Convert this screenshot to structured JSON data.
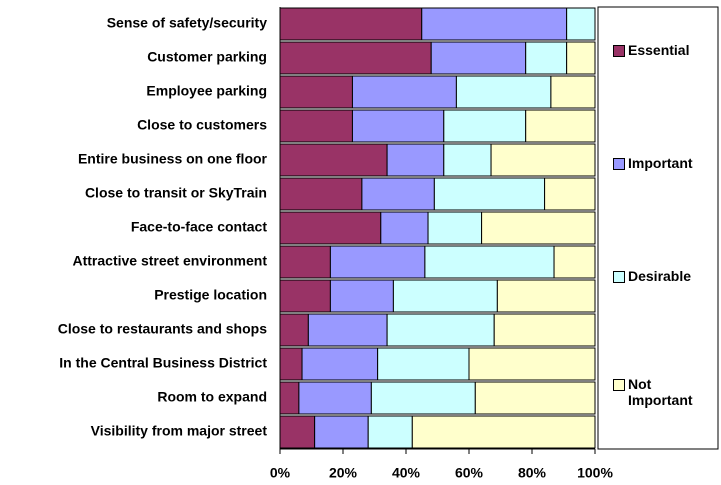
{
  "chart_data": {
    "type": "stacked_barh",
    "categories": [
      "Sense of safety/security",
      "Customer parking",
      "Employee parking",
      "Close to customers",
      "Entire business on one floor",
      "Close to transit or SkyTrain",
      "Face-to-face contact",
      "Attractive street environment",
      "Prestige location",
      "Close to restaurants and shops",
      "In the Central Business District",
      "Room to expand",
      "Visibility from major street"
    ],
    "series": [
      {
        "name": "Essential",
        "color": "#993366",
        "values": [
          45,
          48,
          23,
          23,
          34,
          26,
          32,
          16,
          16,
          9,
          7,
          6,
          11
        ]
      },
      {
        "name": "Important",
        "color": "#9999ff",
        "values": [
          46,
          30,
          33,
          29,
          18,
          23,
          15,
          30,
          20,
          25,
          24,
          23,
          17
        ]
      },
      {
        "name": "Desirable",
        "color": "#ccffff",
        "values": [
          9,
          13,
          30,
          26,
          15,
          35,
          17,
          41,
          33,
          34,
          29,
          33,
          14
        ]
      },
      {
        "name": "Not Important",
        "color": "#ffffcc",
        "values": [
          0,
          9,
          14,
          22,
          33,
          16,
          36,
          13,
          31,
          32,
          40,
          38,
          58
        ]
      }
    ],
    "xlim": [
      0,
      100
    ],
    "xticks": [
      {
        "value": 0,
        "label": "0%"
      },
      {
        "value": 20,
        "label": "20%"
      },
      {
        "value": 40,
        "label": "40%"
      },
      {
        "value": 60,
        "label": "60%"
      },
      {
        "value": 80,
        "label": "80%"
      },
      {
        "value": 100,
        "label": "100%"
      }
    ],
    "legend": "right"
  }
}
